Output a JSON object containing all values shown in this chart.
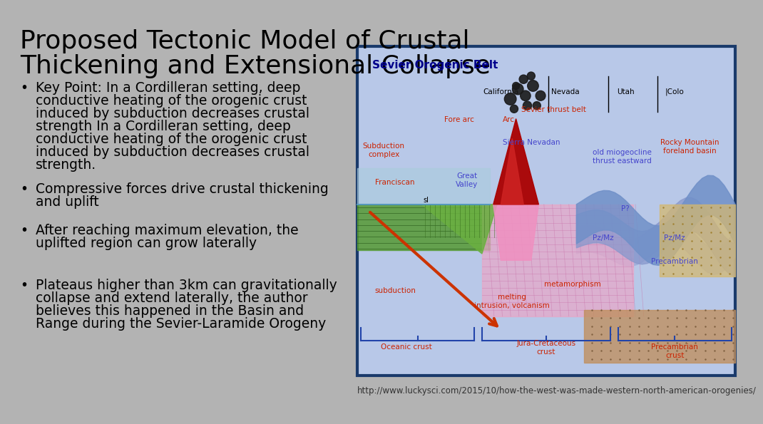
{
  "bg_color": "#b3b3b3",
  "title_lines": [
    "Proposed Tectonic Model of Crustal",
    "Thickening and Extensional Collapse"
  ],
  "title_fontsize": 26,
  "title_color": "#000000",
  "bullet_points": [
    "Key Point: In a Cordilleran setting, deep\nconductive heating of the orogenic crust\ninduced by subduction decreases crustal\nstrength In a Cordilleran setting, deep\nconductive heating of the orogenic crust\ninduced by subduction decreases crustal\nstrength.",
    "Compressive forces drive crustal thickening\nand uplift",
    "After reaching maximum elevation, the\nuplifted region can grow laterally",
    "Plateaus higher than 3km can gravitationally\ncollapse and extend laterally, the author\nbelieves this happened in the Basin and\nRange during the Sevier-Laramide Orogeny"
  ],
  "bullet_fontsize": 13.5,
  "bullet_color": "#000000",
  "url_text": "http://www.luckysci.com/2015/10/how-the-west-was-made-western-north-american-orogenies/",
  "url_fontsize": 8.5,
  "diagram_bg": "#b8c8e8",
  "diagram_border": "#1a3a6b",
  "diagram_title": "Sevier Orogenic Belt",
  "diagram_title_color": "#00008b",
  "label_red": "#cc2200",
  "label_blue": "#4444cc",
  "label_darkblue": "#00008b",
  "label_black": "#000000"
}
